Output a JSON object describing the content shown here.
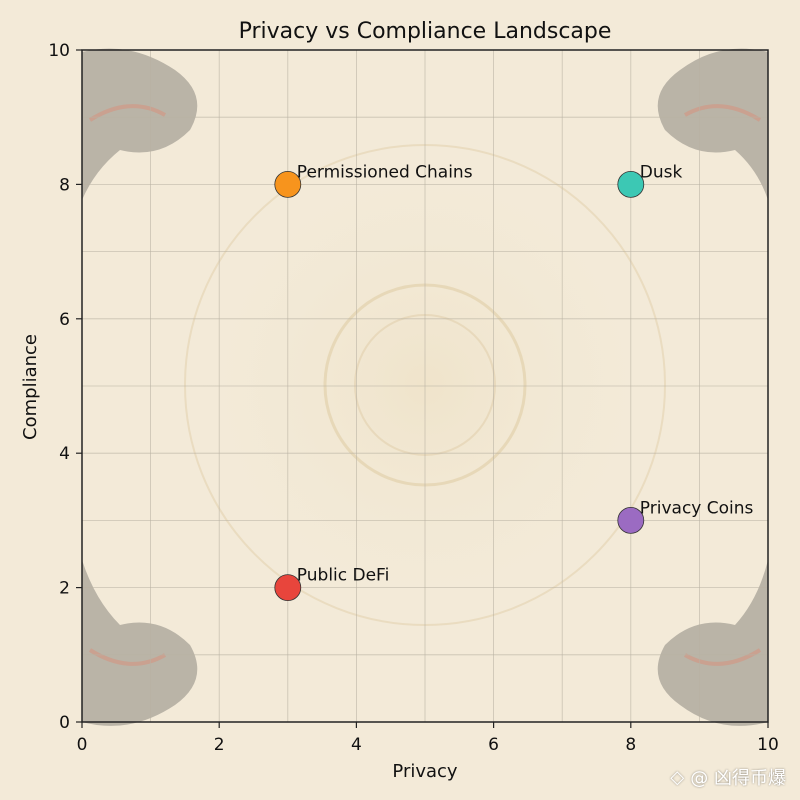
{
  "chart_data": {
    "type": "scatter",
    "title": "Privacy vs Compliance Landscape",
    "xlabel": "Privacy",
    "ylabel": "Compliance",
    "xlim": [
      0,
      10
    ],
    "ylim": [
      0,
      10
    ],
    "xticks": [
      0,
      2,
      4,
      6,
      8,
      10
    ],
    "yticks": [
      0,
      2,
      4,
      6,
      8,
      10
    ],
    "grid": true,
    "points": [
      {
        "label": "Permissioned Chains",
        "x": 3,
        "y": 8,
        "color": "#f7941d"
      },
      {
        "label": "Dusk",
        "x": 8,
        "y": 8,
        "color": "#3cc8b4"
      },
      {
        "label": "Privacy Coins",
        "x": 8,
        "y": 3,
        "color": "#9b6bc2"
      },
      {
        "label": "Public DeFi",
        "x": 3,
        "y": 2,
        "color": "#e8453c"
      }
    ]
  },
  "watermark": {
    "text": "@ 凶得币爆",
    "icon": "diamond-logo-icon"
  }
}
